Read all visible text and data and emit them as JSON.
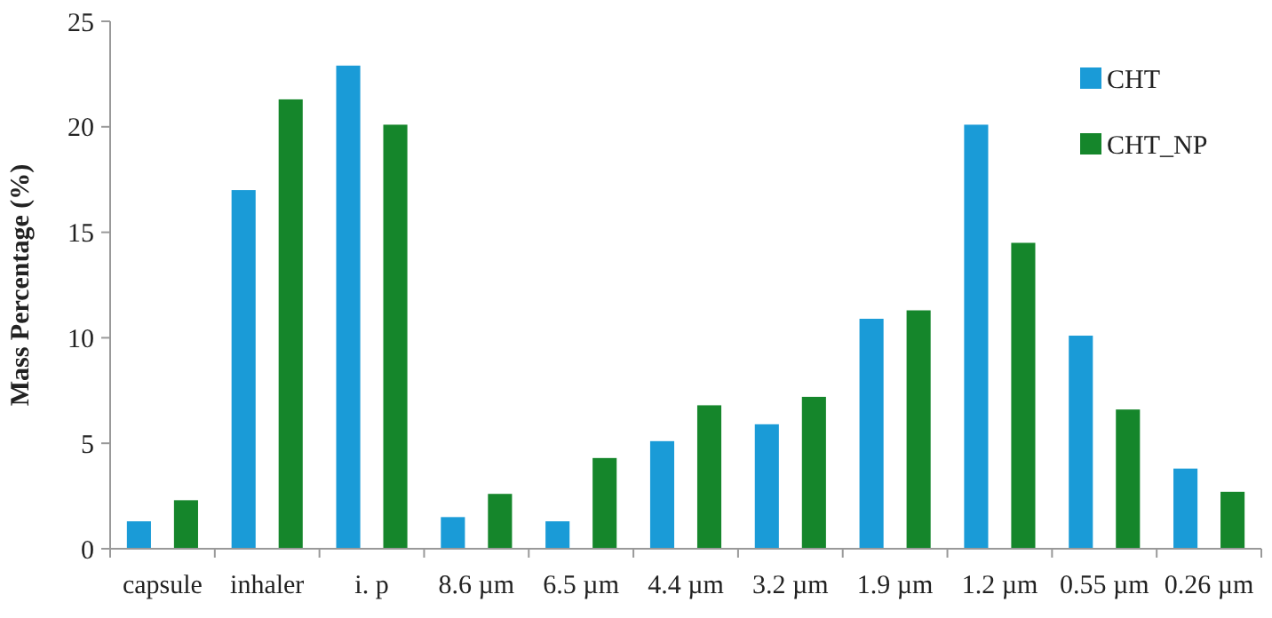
{
  "chart_data": {
    "type": "bar",
    "ylabel": "Mass Percentage (%)",
    "categories": [
      "capsule",
      "inhaler",
      "i. p",
      "8.6 µm",
      "6.5 µm",
      "4.4 µm",
      "3.2 µm",
      "1.9 µm",
      "1.2 µm",
      "0.55 µm",
      "0.26 µm"
    ],
    "series": [
      {
        "name": "CHT",
        "color": "#1a9bd7",
        "values": [
          1.3,
          17,
          22.9,
          1.5,
          1.3,
          5.1,
          5.9,
          10.9,
          20.1,
          10.1,
          3.8
        ]
      },
      {
        "name": "CHT_NP",
        "color": "#15862b",
        "values": [
          2.3,
          21.3,
          20.1,
          2.6,
          4.3,
          6.8,
          7.2,
          11.3,
          14.5,
          6.6,
          2.7
        ]
      }
    ],
    "ylim": [
      0,
      25
    ],
    "yticks": [
      0,
      5,
      10,
      15,
      20,
      25
    ],
    "grid": false,
    "legend": "top right"
  }
}
